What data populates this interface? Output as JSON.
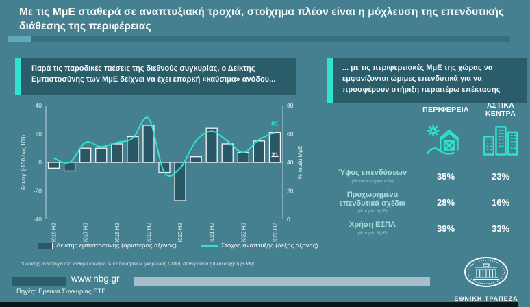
{
  "slide": {
    "title": "Με τις ΜμΕ σταθερά σε αναπτυξιακή τροχιά, στοίχημα πλέον είναι η μόχλευση της επενδυτικής διάθεσης της περιφέρειας"
  },
  "left_panel": {
    "callout": "Παρά τις παροδικές πιέσεις της διεθνούς συγκυρίας, ο Δείκτης Εμπιστοσύνης των ΜμΕ δείχνει να έχει επαρκή «καύσιμα» ανόδου...",
    "footnote": "Ο δείκτης αντιστοιχεί στο καθαρό ισοζύγιο των απαντήσεων, για μείωση (-100), σταθερότητα (0) και αύξηση (+100).",
    "website": "www.nbg.gr",
    "sources": "Πηγές: Έρευνα Συγκυρίας ΕΤΕ"
  },
  "chart_data": {
    "type": "combo-bar-line",
    "categories": [
      "2016 H2",
      "2017 H1",
      "2017 H2",
      "2018 H1",
      "2018 H2",
      "2019 H1",
      "2019 H2",
      "2020 H1",
      "2020 H2",
      "2021 H1",
      "2021 H2",
      "2022 H1",
      "2022 H2",
      "2023 H1",
      "2023 H2"
    ],
    "x_labels_shown_every": 2,
    "series": [
      {
        "name": "Δείκτης εμπιστοσύνης (αριστερός άξονας)",
        "type": "bar",
        "axis": "left",
        "values": [
          -4,
          -6,
          10,
          10,
          13,
          18,
          26,
          -7,
          -27,
          4,
          24,
          13,
          7,
          15,
          21
        ]
      },
      {
        "name": "Στόχος ανάπτυξης (δεξής άξονας)",
        "type": "line",
        "axis": "right",
        "values": [
          43,
          40,
          54,
          51,
          54,
          57,
          71,
          33,
          36,
          55,
          62,
          55,
          47,
          56,
          61
        ]
      }
    ],
    "left_axis": {
      "label": "δείκτης (-100 έως 100)",
      "min": -40,
      "max": 40,
      "ticks": [
        40,
        20,
        0,
        -20,
        -40
      ]
    },
    "right_axis": {
      "label": "% τομέα ΜμΕ",
      "min": 0,
      "max": 80,
      "ticks": [
        80,
        60,
        40,
        20,
        0
      ]
    },
    "end_labels": {
      "line": "61",
      "bar": "21"
    },
    "grid": false,
    "legend_position": "bottom"
  },
  "right_panel": {
    "callout": "... με τις περιφερειακές ΜμΕ της χώρας να εμφανίζονται ώριμες επενδυτικά για να προσφέρουν στήριξη περαιτέρω επέκτασης",
    "table": {
      "columns": [
        "ΠΕΡΙΦΕΡΕΙΑ",
        "ΑΣΤΙΚΑ ΚΕΝΤΡΑ"
      ],
      "column_icons": [
        "farm-icon",
        "city-buildings-icon"
      ],
      "rows": [
        {
          "label": "Ύψος επενδύσεων",
          "sub": "(% κύκλου εργασιών)",
          "values": [
            "35%",
            "23%"
          ]
        },
        {
          "label": "Προχωρημένα επενδυτικά σχέδια",
          "sub": "(% τομέα ΜμΕ)",
          "values": [
            "28%",
            "16%"
          ]
        },
        {
          "label": "Χρήση ΕΣΠΑ",
          "sub": "(% τομέα ΜμΕ)",
          "values": [
            "39%",
            "33%"
          ]
        }
      ]
    },
    "logo_text": "ΕΘΝΙΚΗ ΤΡΑΠΕΖΑ"
  },
  "colors": {
    "background": "#44808F",
    "panel": "#2B5C6A",
    "accent": "#2EE3D0",
    "bar_fill": "#2A5765",
    "bar_stroke": "#F2F6F7",
    "axis": "#C2D2D8",
    "text": "#FFFFFF",
    "footer_bar_light": "#A5BECB"
  }
}
